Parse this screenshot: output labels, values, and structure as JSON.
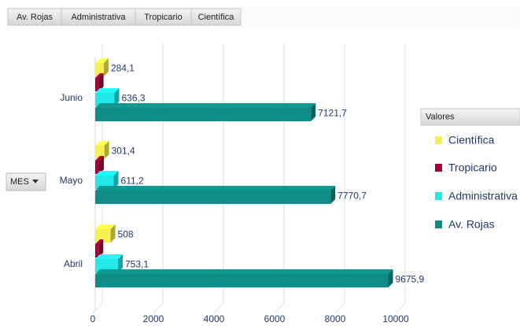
{
  "toolbar": {
    "tabs": [
      "Av. Rojas",
      "Administrativa",
      "Tropicario",
      "Científica"
    ]
  },
  "row_field": "MES",
  "chart_data": {
    "type": "bar",
    "orientation": "horizontal",
    "categories": [
      "Junio",
      "Mayo",
      "Abril"
    ],
    "legend_title": "Valores",
    "series": [
      {
        "name": "Científica",
        "color": "#f5f04e",
        "values": [
          284.1,
          301.4,
          508
        ],
        "value_labels": [
          "284,1",
          "301,4",
          "508"
        ]
      },
      {
        "name": "Tropicario",
        "color": "#a8003c",
        "values": [
          120,
          130,
          110
        ]
      },
      {
        "name": "Administrativa",
        "color": "#22e8e8",
        "values": [
          636.3,
          611.2,
          753.1
        ],
        "value_labels": [
          "636,3",
          "611,2",
          "753,1"
        ]
      },
      {
        "name": "Av. Rojas",
        "color": "#0e8c87",
        "values": [
          7121.7,
          7770.7,
          9675.9
        ],
        "value_labels": [
          "7121,7",
          "7770,7",
          "9675,9"
        ]
      }
    ],
    "xlim": [
      0,
      10000
    ],
    "xticks": [
      0,
      2000,
      4000,
      6000,
      8000,
      10000
    ],
    "grid": true,
    "legend": "right"
  }
}
